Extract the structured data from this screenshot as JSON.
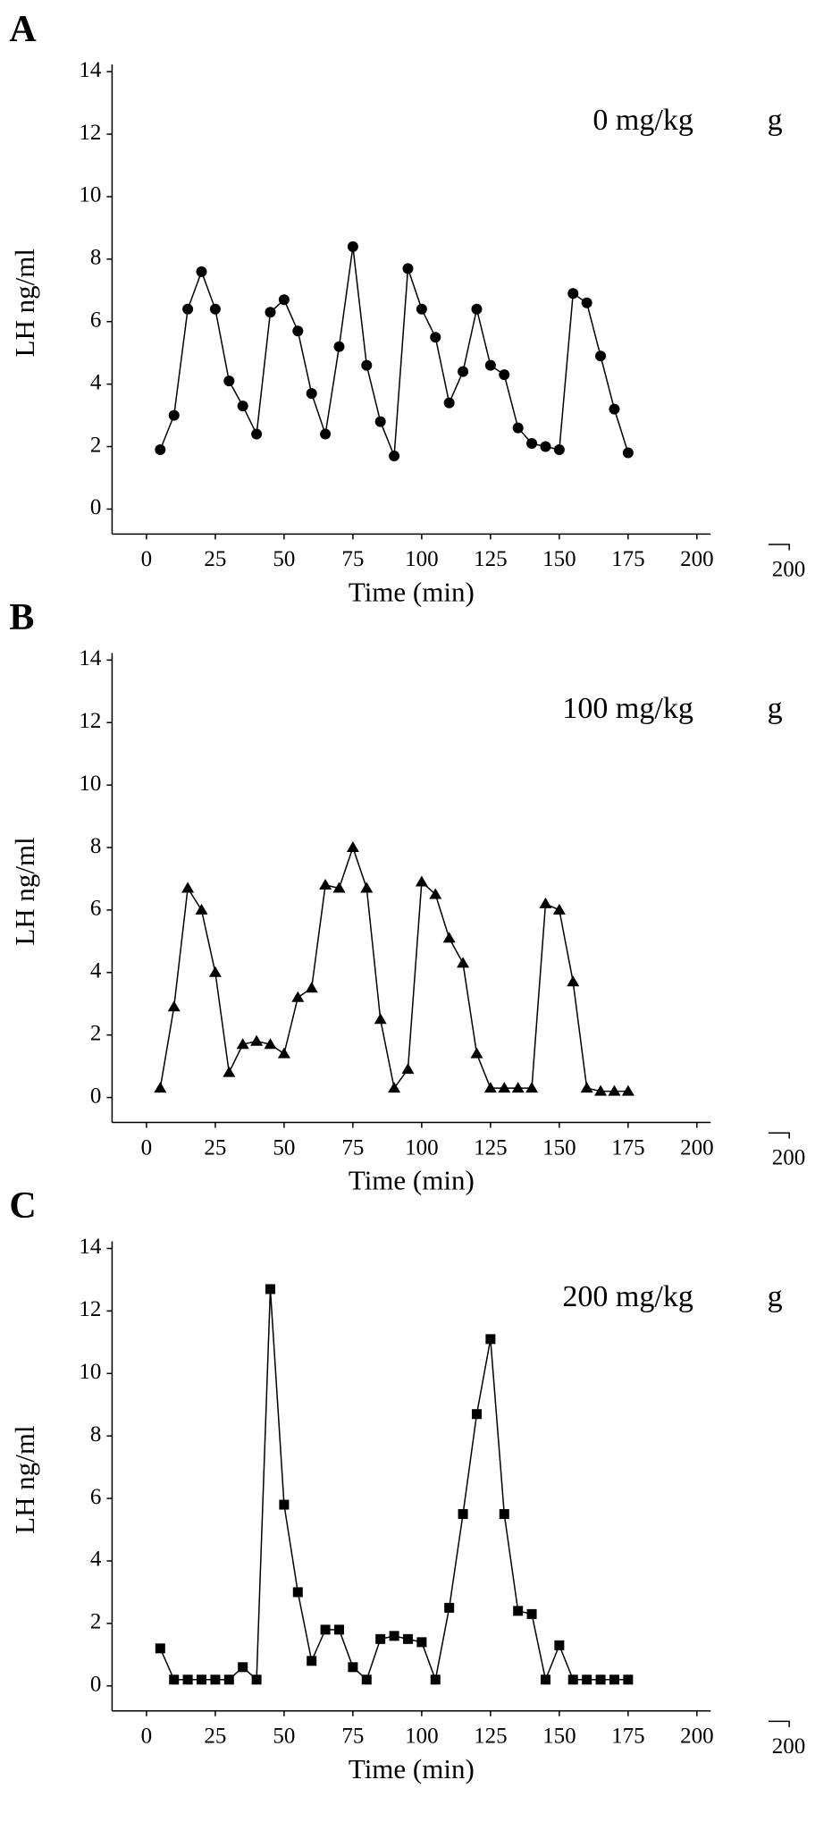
{
  "chart_data": [
    {
      "type": "line",
      "panel": "A",
      "annotation": "0 mg/kg",
      "margin_texts": [
        "g",
        "200"
      ],
      "xlabel": "Time (min)",
      "ylabel": "LH ng/ml",
      "marker": "circle",
      "color": "#000000",
      "x": [
        5,
        10,
        15,
        20,
        25,
        30,
        35,
        40,
        45,
        50,
        55,
        60,
        65,
        70,
        75,
        80,
        85,
        90,
        95,
        100,
        105,
        110,
        115,
        120,
        125,
        130,
        135,
        140,
        145,
        150,
        155,
        160,
        165,
        170,
        175
      ],
      "values": [
        1.9,
        3.0,
        6.4,
        7.6,
        6.4,
        4.1,
        3.3,
        2.4,
        6.3,
        6.7,
        5.7,
        3.7,
        2.4,
        5.2,
        8.4,
        4.6,
        2.8,
        1.7,
        7.7,
        6.4,
        5.5,
        3.4,
        4.4,
        6.4,
        4.6,
        4.3,
        2.6,
        2.1,
        2.0,
        1.9,
        6.9,
        6.6,
        4.9,
        3.2,
        1.8
      ],
      "xlim": [
        -12.5,
        205
      ],
      "ylim": [
        -0.8,
        14
      ],
      "xticks": [
        0,
        25,
        50,
        75,
        100,
        125,
        150,
        175,
        200
      ],
      "yticks": [
        0,
        2,
        4,
        6,
        8,
        10,
        12,
        14
      ]
    },
    {
      "type": "line",
      "panel": "B",
      "annotation": "100 mg/kg",
      "margin_texts": [
        "g",
        "200"
      ],
      "xlabel": "Time (min)",
      "ylabel": "LH ng/ml",
      "marker": "triangle",
      "color": "#000000",
      "x": [
        5,
        10,
        15,
        20,
        25,
        30,
        35,
        40,
        45,
        50,
        55,
        60,
        65,
        70,
        75,
        80,
        85,
        90,
        95,
        100,
        105,
        110,
        115,
        120,
        125,
        130,
        135,
        140,
        145,
        150,
        155,
        160,
        165,
        170,
        175
      ],
      "values": [
        0.3,
        2.9,
        6.7,
        6.0,
        4.0,
        0.8,
        1.7,
        1.8,
        1.7,
        1.4,
        3.2,
        3.5,
        6.8,
        6.7,
        8.0,
        6.7,
        2.5,
        0.3,
        0.9,
        6.9,
        6.5,
        5.1,
        4.3,
        1.4,
        0.3,
        0.3,
        0.3,
        0.3,
        6.2,
        6.0,
        3.7,
        0.3,
        0.2,
        0.2,
        0.2
      ],
      "xlim": [
        -12.5,
        205
      ],
      "ylim": [
        -0.8,
        14
      ],
      "xticks": [
        0,
        25,
        50,
        75,
        100,
        125,
        150,
        175,
        200
      ],
      "yticks": [
        0,
        2,
        4,
        6,
        8,
        10,
        12,
        14
      ]
    },
    {
      "type": "line",
      "panel": "C",
      "annotation": "200 mg/kg",
      "margin_texts": [
        "g",
        "200"
      ],
      "xlabel": "Time (min)",
      "ylabel": "LH ng/ml",
      "marker": "square",
      "color": "#000000",
      "x": [
        5,
        10,
        15,
        20,
        25,
        30,
        35,
        40,
        45,
        50,
        55,
        60,
        65,
        70,
        75,
        80,
        85,
        90,
        95,
        100,
        105,
        110,
        115,
        120,
        125,
        130,
        135,
        140,
        145,
        150,
        155,
        160,
        165,
        170,
        175
      ],
      "values": [
        1.2,
        0.2,
        0.2,
        0.2,
        0.2,
        0.2,
        0.6,
        0.2,
        12.7,
        5.8,
        3.0,
        0.8,
        1.8,
        1.8,
        0.6,
        0.2,
        1.5,
        1.6,
        1.5,
        1.4,
        0.2,
        2.5,
        5.5,
        8.7,
        11.1,
        5.5,
        2.4,
        2.3,
        0.2,
        1.3,
        0.2,
        0.2,
        0.2,
        0.2,
        0.2
      ],
      "xlim": [
        -12.5,
        205
      ],
      "ylim": [
        -0.8,
        14
      ],
      "xticks": [
        0,
        25,
        50,
        75,
        100,
        125,
        150,
        175,
        200
      ],
      "yticks": [
        0,
        2,
        4,
        6,
        8,
        10,
        12,
        14
      ]
    }
  ]
}
